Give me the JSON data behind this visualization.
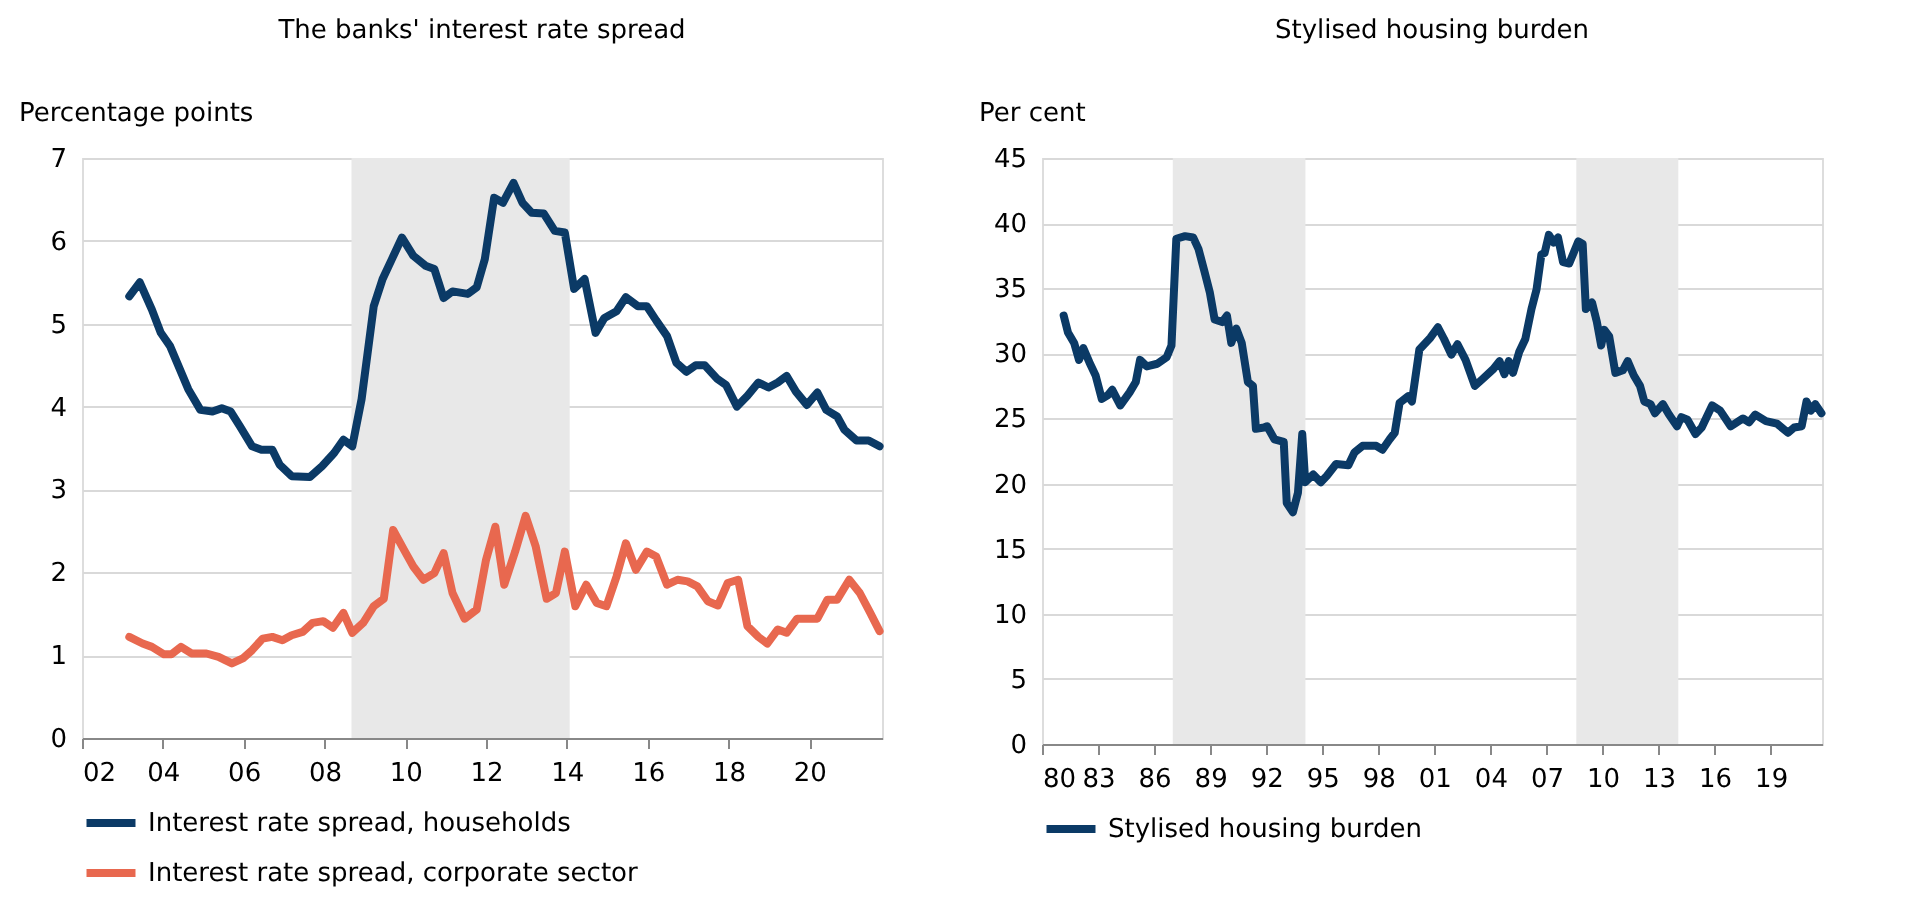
{
  "chart_data": [
    {
      "type": "line",
      "title": "The banks' interest rate spread",
      "ylabel": "Percentage points",
      "xlim": [
        2002,
        2021.8
      ],
      "xticks": [
        {
          "value": 2002,
          "label": "02"
        },
        {
          "value": 2004,
          "label": "04"
        },
        {
          "value": 2006,
          "label": "06"
        },
        {
          "value": 2008,
          "label": "08"
        },
        {
          "value": 2010,
          "label": "10"
        },
        {
          "value": 2012,
          "label": "12"
        },
        {
          "value": 2014,
          "label": "14"
        },
        {
          "value": 2016,
          "label": "16"
        },
        {
          "value": 2018,
          "label": "18"
        },
        {
          "value": 2020,
          "label": "20"
        }
      ],
      "ylim": [
        0,
        7
      ],
      "yticks": [
        0,
        1,
        2,
        3,
        4,
        5,
        6,
        7
      ],
      "grid": "y",
      "legend": "bottom",
      "line_style": "solid",
      "marker": "none",
      "bands": [
        {
          "axis": "x",
          "from": 2008.67,
          "to": 2014.07,
          "color": "#e8e8e8"
        }
      ],
      "series": [
        {
          "name": "Interest rate spread, households",
          "color": "#0b3a66",
          "x": [
            2003.17,
            2003.43,
            2003.73,
            2003.95,
            2004.18,
            2004.63,
            2004.93,
            2005.23,
            2005.46,
            2005.68,
            2005.91,
            2006.21,
            2006.44,
            2006.71,
            2006.89,
            2007.19,
            2007.64,
            2007.94,
            2008.24,
            2008.47,
            2008.69,
            2008.92,
            2009.22,
            2009.44,
            2009.67,
            2009.92,
            2010.2,
            2010.5,
            2010.72,
            2010.95,
            2011.17,
            2011.55,
            2011.77,
            2011.97,
            2012.2,
            2012.42,
            2012.68,
            2012.9,
            2013.13,
            2013.43,
            2013.7,
            2013.95,
            2014.18,
            2014.44,
            2014.71,
            2014.93,
            2015.23,
            2015.46,
            2015.76,
            2015.98,
            2016.21,
            2016.48,
            2016.71,
            2016.96,
            2017.19,
            2017.41,
            2017.71,
            2017.94,
            2018.21,
            2018.47,
            2018.74,
            2018.99,
            2019.22,
            2019.44,
            2019.67,
            2019.94,
            2020.2,
            2020.42,
            2020.69,
            2020.87,
            2021.17,
            2021.47,
            2021.74
          ],
          "values": [
            5.33,
            5.5,
            5.17,
            4.89,
            4.73,
            4.21,
            3.96,
            3.94,
            3.98,
            3.94,
            3.76,
            3.52,
            3.48,
            3.48,
            3.3,
            3.16,
            3.15,
            3.28,
            3.44,
            3.6,
            3.52,
            4.09,
            5.21,
            5.54,
            5.78,
            6.04,
            5.82,
            5.7,
            5.66,
            5.31,
            5.39,
            5.36,
            5.44,
            5.78,
            6.52,
            6.46,
            6.7,
            6.46,
            6.34,
            6.33,
            6.12,
            6.1,
            5.42,
            5.54,
            4.89,
            5.07,
            5.15,
            5.32,
            5.21,
            5.21,
            5.04,
            4.85,
            4.53,
            4.42,
            4.5,
            4.5,
            4.34,
            4.26,
            4.0,
            4.13,
            4.29,
            4.23,
            4.29,
            4.37,
            4.18,
            4.02,
            4.17,
            3.96,
            3.88,
            3.72,
            3.59,
            3.59,
            3.52
          ]
        },
        {
          "name": "Interest rate spread, corporate sector",
          "color": "#e8684f",
          "x": [
            2003.17,
            2003.5,
            2003.73,
            2004.03,
            2004.21,
            2004.45,
            2004.71,
            2005.08,
            2005.38,
            2005.71,
            2005.98,
            2006.21,
            2006.47,
            2006.71,
            2006.96,
            2007.19,
            2007.46,
            2007.71,
            2007.97,
            2008.21,
            2008.47,
            2008.69,
            2008.96,
            2009.22,
            2009.47,
            2009.7,
            2009.97,
            2010.2,
            2010.45,
            2010.72,
            2010.95,
            2011.17,
            2011.47,
            2011.77,
            2012.0,
            2012.23,
            2012.45,
            2012.72,
            2012.98,
            2013.23,
            2013.5,
            2013.73,
            2013.95,
            2014.21,
            2014.48,
            2014.74,
            2014.98,
            2015.23,
            2015.46,
            2015.71,
            2015.98,
            2016.21,
            2016.48,
            2016.74,
            2016.99,
            2017.23,
            2017.49,
            2017.74,
            2017.98,
            2018.24,
            2018.47,
            2018.74,
            2018.96,
            2019.22,
            2019.44,
            2019.7,
            2019.97,
            2020.2,
            2020.45,
            2020.69,
            2020.99,
            2021.25,
            2021.5,
            2021.74
          ],
          "values": [
            1.22,
            1.14,
            1.1,
            1.01,
            1.01,
            1.1,
            1.02,
            1.02,
            0.98,
            0.9,
            0.96,
            1.06,
            1.2,
            1.22,
            1.18,
            1.24,
            1.28,
            1.39,
            1.41,
            1.33,
            1.51,
            1.27,
            1.39,
            1.59,
            1.68,
            2.51,
            2.27,
            2.07,
            1.91,
            1.99,
            2.23,
            1.75,
            1.44,
            1.55,
            2.15,
            2.55,
            1.85,
            2.25,
            2.68,
            2.31,
            1.68,
            1.75,
            2.25,
            1.59,
            1.85,
            1.63,
            1.59,
            1.95,
            2.35,
            2.03,
            2.25,
            2.19,
            1.85,
            1.91,
            1.89,
            1.83,
            1.65,
            1.6,
            1.87,
            1.91,
            1.35,
            1.22,
            1.14,
            1.31,
            1.27,
            1.44,
            1.44,
            1.44,
            1.67,
            1.67,
            1.91,
            1.75,
            1.52,
            1.29
          ]
        }
      ]
    },
    {
      "type": "line",
      "title": "Stylised housing burden",
      "ylabel": "Per cent",
      "xlim": [
        1980,
        2021.75
      ],
      "xticks": [
        {
          "value": 1980,
          "label": "80"
        },
        {
          "value": 1983,
          "label": "83"
        },
        {
          "value": 1986,
          "label": "86"
        },
        {
          "value": 1989,
          "label": "89"
        },
        {
          "value": 1992,
          "label": "92"
        },
        {
          "value": 1995,
          "label": "95"
        },
        {
          "value": 1998,
          "label": "98"
        },
        {
          "value": 2001,
          "label": "01"
        },
        {
          "value": 2004,
          "label": "04"
        },
        {
          "value": 2007,
          "label": "07"
        },
        {
          "value": 2010,
          "label": "10"
        },
        {
          "value": 2013,
          "label": "13"
        },
        {
          "value": 2016,
          "label": "16"
        },
        {
          "value": 2019,
          "label": "19"
        }
      ],
      "ylim": [
        0,
        45
      ],
      "yticks": [
        0,
        5,
        10,
        15,
        20,
        25,
        30,
        35,
        40,
        45
      ],
      "grid": "y",
      "legend": "bottom",
      "line_style": "solid",
      "marker": "none",
      "bands": [
        {
          "axis": "x",
          "from": 1987.0,
          "to": 1994.1,
          "color": "#e8e8e8"
        },
        {
          "axis": "x",
          "from": 2008.6,
          "to": 2014.06,
          "color": "#e8e8e8"
        }
      ],
      "series": [
        {
          "name": "Stylised housing burden",
          "color": "#0b3a66",
          "x": [
            1981.16,
            1981.39,
            1981.72,
            1981.98,
            1982.21,
            1982.54,
            1982.87,
            1983.2,
            1983.53,
            1983.76,
            1984.19,
            1984.69,
            1985.02,
            1985.25,
            1985.61,
            1986.17,
            1986.67,
            1986.93,
            1987.19,
            1987.66,
            1988.09,
            1988.38,
            1988.71,
            1988.98,
            1989.24,
            1989.64,
            1989.9,
            1990.13,
            1990.4,
            1990.69,
            1991.02,
            1991.29,
            1991.45,
            1991.88,
            1992.05,
            1992.44,
            1992.94,
            1993.1,
            1993.43,
            1993.7,
            1993.93,
            1994.09,
            1994.52,
            1994.92,
            1995.25,
            1995.74,
            1996.4,
            1996.73,
            1997.16,
            1997.89,
            1998.22,
            1998.61,
            1998.88,
            1999.14,
            1999.6,
            1999.8,
            2000.2,
            2000.79,
            2001.19,
            2001.52,
            2001.91,
            2002.24,
            2002.67,
            2003.17,
            2003.56,
            2004.16,
            2004.49,
            2004.75,
            2004.98,
            2005.21,
            2005.54,
            2005.87,
            2006.2,
            2006.47,
            2006.73,
            2006.9,
            2007.13,
            2007.39,
            2007.62,
            2007.89,
            2008.22,
            2008.71,
            2008.94,
            2009.11,
            2009.44,
            2009.7,
            2009.93,
            2010.1,
            2010.36,
            2010.69,
            2011.09,
            2011.35,
            2011.68,
            2012.01,
            2012.24,
            2012.57,
            2012.81,
            2013.23,
            2013.56,
            2013.99,
            2014.22,
            2014.55,
            2014.98,
            2015.31,
            2015.87,
            2016.3,
            2016.86,
            2017.52,
            2017.85,
            2018.18,
            2018.75,
            2019.34,
            2019.93,
            2020.26,
            2020.66,
            2020.92,
            2021.16,
            2021.39,
            2021.72
          ],
          "values": [
            32.9,
            31.6,
            30.8,
            29.5,
            30.4,
            29.3,
            28.3,
            26.5,
            26.8,
            27.2,
            26.0,
            27.0,
            27.8,
            29.5,
            29.0,
            29.2,
            29.7,
            30.6,
            38.8,
            39.0,
            38.9,
            38.0,
            36.2,
            34.7,
            32.6,
            32.4,
            32.9,
            30.8,
            31.9,
            30.8,
            27.8,
            27.5,
            24.2,
            24.3,
            24.4,
            23.4,
            23.2,
            18.5,
            17.8,
            19.3,
            23.8,
            20.1,
            20.7,
            20.1,
            20.6,
            21.5,
            21.4,
            22.4,
            22.9,
            22.9,
            22.6,
            23.4,
            23.9,
            26.2,
            26.7,
            26.3,
            30.3,
            31.2,
            32.0,
            31.1,
            29.9,
            30.7,
            29.5,
            27.5,
            28.0,
            28.8,
            29.4,
            28.4,
            29.4,
            28.5,
            30.1,
            31.1,
            33.4,
            34.9,
            37.6,
            37.7,
            39.1,
            38.5,
            38.9,
            37.0,
            36.9,
            38.6,
            38.4,
            33.4,
            33.9,
            32.4,
            30.6,
            31.8,
            31.3,
            28.5,
            28.7,
            29.4,
            28.3,
            27.5,
            26.3,
            26.1,
            25.4,
            26.1,
            25.3,
            24.4,
            25.1,
            24.9,
            23.8,
            24.3,
            26.0,
            25.6,
            24.4,
            25.0,
            24.7,
            25.3,
            24.8,
            24.6,
            23.9,
            24.3,
            24.4,
            26.3,
            25.6,
            26.1,
            25.4
          ]
        }
      ]
    }
  ]
}
